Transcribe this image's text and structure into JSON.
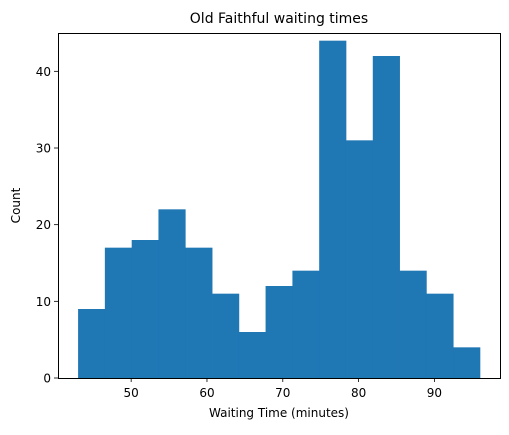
{
  "chart_data": {
    "type": "bar",
    "title": "Old Faithful waiting times",
    "xlabel": "Waiting Time (minutes)",
    "ylabel": "Count",
    "xlim": [
      43.0,
      96.0
    ],
    "ylim": [
      0,
      45
    ],
    "xticks": [
      50,
      60,
      70,
      80,
      90
    ],
    "yticks": [
      0,
      10,
      20,
      30,
      40
    ],
    "bin_edges": [
      43.0,
      46.53,
      50.07,
      53.6,
      57.13,
      60.67,
      64.2,
      67.73,
      71.27,
      74.8,
      78.33,
      81.87,
      85.4,
      88.93,
      92.47,
      96.0
    ],
    "counts": [
      9,
      17,
      18,
      22,
      17,
      11,
      6,
      12,
      14,
      44,
      31,
      42,
      14,
      11,
      4
    ],
    "bar_color": "#1f77b4",
    "grid": false,
    "legend": "none"
  }
}
